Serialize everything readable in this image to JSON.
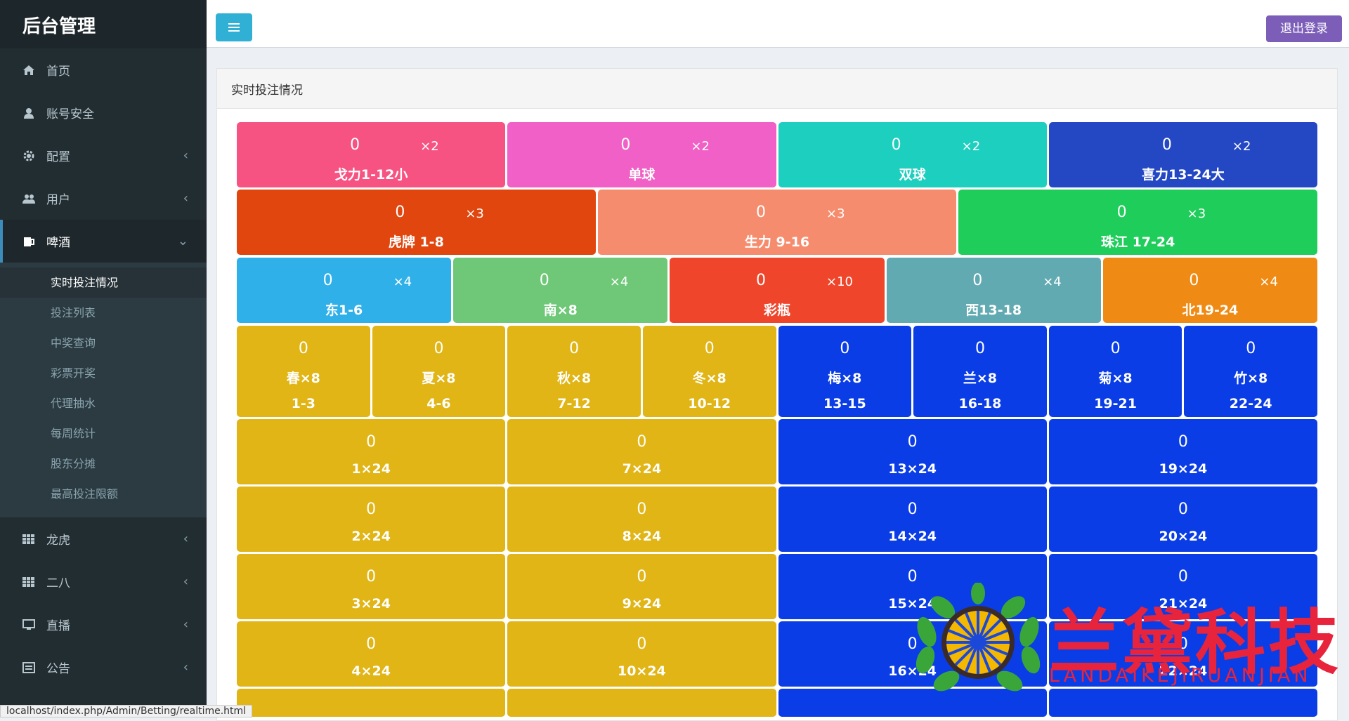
{
  "app": {
    "title": "后台管理"
  },
  "sidebar": {
    "items": [
      {
        "label": "首页",
        "icon": "home-icon",
        "arrow": ""
      },
      {
        "label": "账号安全",
        "icon": "user-icon",
        "arrow": ""
      },
      {
        "label": "配置",
        "icon": "gear-icon",
        "arrow": "‹"
      },
      {
        "label": "用户",
        "icon": "users-icon",
        "arrow": "‹"
      },
      {
        "label": "啤酒",
        "icon": "beer-icon",
        "arrow": "⌄"
      }
    ],
    "submenu": [
      "实时投注情况",
      "投注列表",
      "中奖查询",
      "彩票开奖",
      "代理抽水",
      "每周统计",
      "股东分摊",
      "最高投注限额"
    ],
    "items_after": [
      {
        "label": "龙虎",
        "icon": "grid-icon",
        "arrow": "‹"
      },
      {
        "label": "二八",
        "icon": "grid-icon",
        "arrow": "‹"
      },
      {
        "label": "直播",
        "icon": "monitor-icon",
        "arrow": "‹"
      },
      {
        "label": "公告",
        "icon": "list-icon",
        "arrow": "‹"
      }
    ]
  },
  "header": {
    "logout_label": "退出登录"
  },
  "panel": {
    "title": "实时投注情况"
  },
  "colors": {
    "pink": "#f65383",
    "magenta": "#f060c6",
    "teal": "#1dcfbf",
    "royal": "#2448c4",
    "orange_red": "#e0460e",
    "salmon": "#f68c6e",
    "green": "#1fcd5b",
    "sky": "#2fb0e8",
    "lightgreen": "#6ec877",
    "red": "#ef452b",
    "slate": "#62aab1",
    "orange": "#ef8b14",
    "gold": "#e0b515",
    "blue": "#0b3de6"
  },
  "row1": [
    {
      "num": "0",
      "mult": "×2",
      "label": "戈力1-12小",
      "color": "pink"
    },
    {
      "num": "0",
      "mult": "×2",
      "label": "单球",
      "color": "magenta"
    },
    {
      "num": "0",
      "mult": "×2",
      "label": "双球",
      "color": "teal"
    },
    {
      "num": "0",
      "mult": "×2",
      "label": "喜力13-24大",
      "color": "royal"
    }
  ],
  "row2": [
    {
      "num": "0",
      "mult": "×3",
      "label": "虎牌 1-8",
      "color": "orange_red"
    },
    {
      "num": "0",
      "mult": "×3",
      "label": "生力 9-16",
      "color": "salmon"
    },
    {
      "num": "0",
      "mult": "×3",
      "label": "珠江 17-24",
      "color": "green"
    }
  ],
  "row3": [
    {
      "num": "0",
      "mult": "×4",
      "label": "东1-6",
      "color": "sky"
    },
    {
      "num": "0",
      "mult": "×4",
      "label": "南×8",
      "color": "lightgreen"
    },
    {
      "num": "0",
      "mult": "×10",
      "label": "彩瓶",
      "color": "red"
    },
    {
      "num": "0",
      "mult": "×4",
      "label": "西13-18",
      "color": "slate"
    },
    {
      "num": "0",
      "mult": "×4",
      "label": "北19-24",
      "color": "orange"
    }
  ],
  "row4": [
    {
      "num": "0",
      "label": "春×8",
      "range": "1-3",
      "color": "gold"
    },
    {
      "num": "0",
      "label": "夏×8",
      "range": "4-6",
      "color": "gold"
    },
    {
      "num": "0",
      "label": "秋×8",
      "range": "7-12",
      "color": "gold"
    },
    {
      "num": "0",
      "label": "冬×8",
      "range": "10-12",
      "color": "gold"
    },
    {
      "num": "0",
      "label": "梅×8",
      "range": "13-15",
      "color": "blue"
    },
    {
      "num": "0",
      "label": "兰×8",
      "range": "16-18",
      "color": "blue"
    },
    {
      "num": "0",
      "label": "菊×8",
      "range": "19-21",
      "color": "blue"
    },
    {
      "num": "0",
      "label": "竹×8",
      "range": "22-24",
      "color": "blue"
    }
  ],
  "number_rows": [
    [
      {
        "num": "0",
        "label": "1×24"
      },
      {
        "num": "0",
        "label": "7×24"
      },
      {
        "num": "0",
        "label": "13×24"
      },
      {
        "num": "0",
        "label": "19×24"
      }
    ],
    [
      {
        "num": "0",
        "label": "2×24"
      },
      {
        "num": "0",
        "label": "8×24"
      },
      {
        "num": "0",
        "label": "14×24"
      },
      {
        "num": "0",
        "label": "20×24"
      }
    ],
    [
      {
        "num": "0",
        "label": "3×24"
      },
      {
        "num": "0",
        "label": "9×24"
      },
      {
        "num": "0",
        "label": "15×24"
      },
      {
        "num": "0",
        "label": "21×24"
      }
    ],
    [
      {
        "num": "0",
        "label": "4×24"
      },
      {
        "num": "0",
        "label": "10×24"
      },
      {
        "num": "0",
        "label": "16×24"
      },
      {
        "num": "0",
        "label": "22×24"
      }
    ]
  ],
  "watermark": {
    "text": "兰黛科技",
    "sub": "LANDAIKEJIRUANJIAN"
  },
  "status_url": "localhost/index.php/Admin/Betting/realtime.html"
}
